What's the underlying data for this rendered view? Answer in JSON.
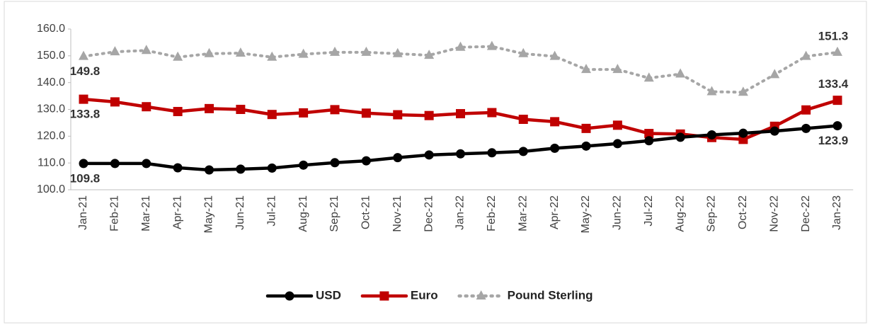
{
  "chart_data": {
    "type": "line",
    "categories": [
      "Jan-21",
      "Feb-21",
      "Mar-21",
      "Apr-21",
      "May-21",
      "Jun-21",
      "Jul-21",
      "Aug-21",
      "Sep-21",
      "Oct-21",
      "Nov-21",
      "Dec-21",
      "Jan-22",
      "Feb-22",
      "Mar-22",
      "Apr-22",
      "May-22",
      "Jun-22",
      "Jul-22",
      "Aug-22",
      "Sep-22",
      "Oct-22",
      "Nov-22",
      "Dec-22",
      "Jan-23"
    ],
    "series": [
      {
        "name": "USD",
        "color": "#000000",
        "marker": "circle",
        "dash": false,
        "values": [
          109.8,
          109.8,
          109.8,
          108.2,
          107.4,
          107.7,
          108.1,
          109.2,
          110.1,
          110.8,
          112.0,
          113.0,
          113.4,
          113.8,
          114.3,
          115.5,
          116.3,
          117.2,
          118.3,
          119.6,
          120.5,
          121.1,
          121.9,
          122.9,
          123.9
        ],
        "value_labels": [
          "109.8",
          null,
          null,
          null,
          null,
          null,
          null,
          null,
          null,
          null,
          null,
          null,
          null,
          null,
          null,
          null,
          null,
          null,
          null,
          null,
          null,
          null,
          null,
          null,
          "123.9"
        ]
      },
      {
        "name": "Euro",
        "color": "#c00000",
        "marker": "square",
        "dash": false,
        "values": [
          133.8,
          132.8,
          131.0,
          129.2,
          130.3,
          130.0,
          128.1,
          128.7,
          129.9,
          128.6,
          128.0,
          127.7,
          128.4,
          128.8,
          126.3,
          125.4,
          122.9,
          124.1,
          121.0,
          120.8,
          119.5,
          118.8,
          123.7,
          129.8,
          133.4
        ],
        "value_labels": [
          "133.8",
          null,
          null,
          null,
          null,
          null,
          null,
          null,
          null,
          null,
          null,
          null,
          null,
          null,
          null,
          null,
          null,
          null,
          null,
          null,
          null,
          null,
          null,
          null,
          "133.4"
        ]
      },
      {
        "name": "Pound Sterling",
        "color": "#a6a6a6",
        "marker": "triangle",
        "dash": true,
        "values": [
          149.8,
          151.5,
          152.0,
          149.5,
          150.8,
          151.0,
          149.5,
          150.6,
          151.3,
          151.3,
          150.8,
          150.2,
          153.2,
          153.5,
          150.8,
          149.8,
          144.9,
          144.9,
          141.7,
          143.2,
          136.6,
          136.4,
          143.0,
          149.8,
          151.3
        ],
        "value_labels": [
          "149.8",
          null,
          null,
          null,
          null,
          null,
          null,
          null,
          null,
          null,
          null,
          null,
          null,
          null,
          null,
          null,
          null,
          null,
          null,
          null,
          null,
          null,
          null,
          null,
          "151.3"
        ]
      }
    ],
    "ylim": [
      100,
      160
    ],
    "yticks": [
      {
        "value": 100,
        "label": "100.0"
      },
      {
        "value": 110,
        "label": "110.0"
      },
      {
        "value": 120,
        "label": "120.0"
      },
      {
        "value": 130,
        "label": "130.0"
      },
      {
        "value": 140,
        "label": "140.0"
      },
      {
        "value": 150,
        "label": "150.0"
      },
      {
        "value": 160,
        "label": "160.0"
      }
    ],
    "grid": false,
    "legend": "bottom"
  }
}
